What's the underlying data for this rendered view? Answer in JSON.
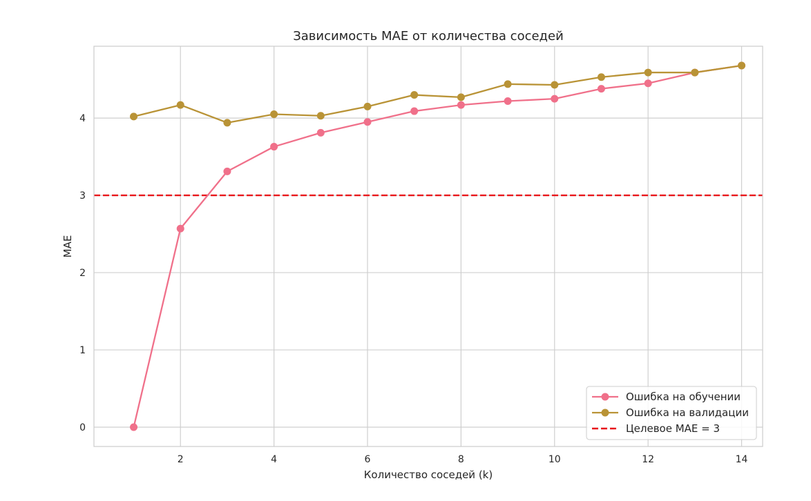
{
  "chart_data": {
    "type": "line",
    "title": "Зависимость MAE от количества соседей",
    "xlabel": "Количество соседей (k)",
    "ylabel": "MAE",
    "x": [
      1,
      2,
      3,
      4,
      5,
      6,
      7,
      8,
      9,
      10,
      11,
      12,
      13,
      14
    ],
    "xlim": [
      0.15,
      14.45
    ],
    "ylim": [
      -0.25,
      4.93
    ],
    "xticks": [
      2,
      4,
      6,
      8,
      10,
      12,
      14
    ],
    "yticks": [
      0,
      1,
      2,
      3,
      4
    ],
    "grid": true,
    "legend_position": "lower-right",
    "series": [
      {
        "name": "Ошибка на обучении",
        "color": "#f0708a",
        "marker": "circle",
        "values": [
          0.0,
          2.57,
          3.31,
          3.63,
          3.81,
          3.95,
          4.09,
          4.17,
          4.22,
          4.25,
          4.38,
          4.45,
          4.59,
          4.68
        ]
      },
      {
        "name": "Ошибка на валидации",
        "color": "#b99336",
        "marker": "circle",
        "values": [
          4.02,
          4.17,
          3.94,
          4.05,
          4.03,
          4.15,
          4.3,
          4.27,
          4.44,
          4.43,
          4.53,
          4.59,
          4.59,
          4.68
        ]
      }
    ],
    "reference_lines": [
      {
        "name": "Целевое MAE = 3",
        "y": 3,
        "color": "#e8151a",
        "style": "dashed"
      }
    ]
  }
}
